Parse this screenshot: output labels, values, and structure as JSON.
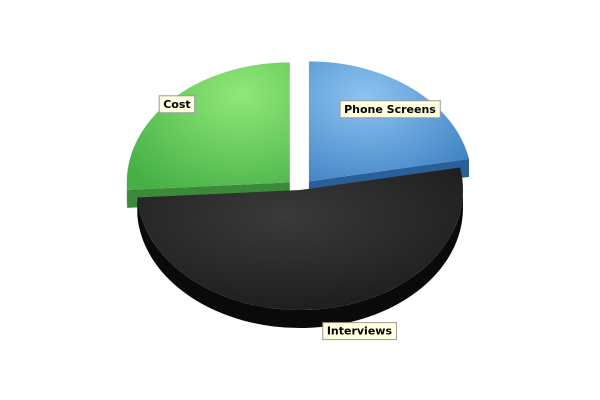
{
  "chart_data": {
    "type": "pie",
    "style": "3d-exploded",
    "categories": [
      "Phone Screens",
      "Interviews",
      "Cost"
    ],
    "values": [
      22,
      52,
      26
    ],
    "unit": "percent",
    "colors": [
      "#4a90d9",
      "#1f1f1f",
      "#5cc45c"
    ],
    "exploded": [
      "Phone Screens",
      "Cost"
    ],
    "title": "",
    "legend": "none",
    "labels_on_slices": true
  }
}
